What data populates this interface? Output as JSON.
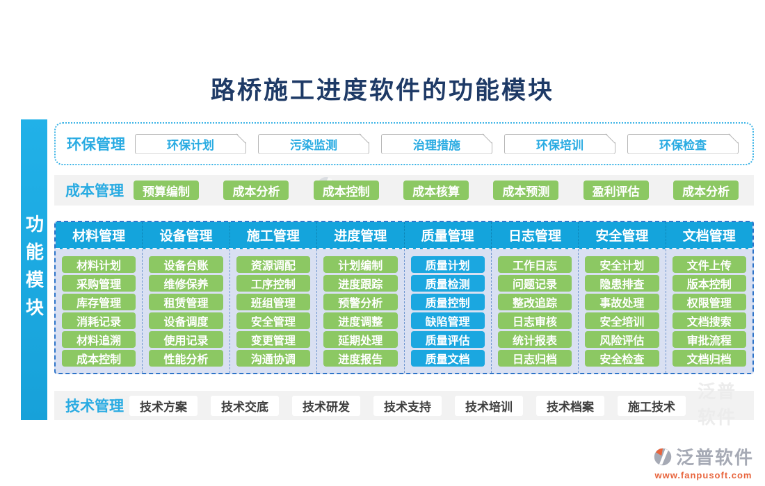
{
  "title": "路桥施工进度软件的功能模块",
  "sidebar_label": "功能模块",
  "sections": {
    "env": {
      "label": "环保管理",
      "buttons": [
        "环保计划",
        "污染监测",
        "治理措施",
        "环保培训",
        "环保检查"
      ]
    },
    "cost": {
      "label": "成本管理",
      "buttons": [
        "预算编制",
        "成本分析",
        "成本控制",
        "成本核算",
        "成本预测",
        "盈利评估",
        "成本分析"
      ]
    },
    "tech": {
      "label": "技术管理",
      "buttons": [
        "技术方案",
        "技术交底",
        "技术研发",
        "技术支持",
        "技术培训",
        "技术档案",
        "施工技术"
      ]
    }
  },
  "grid": {
    "columns": [
      {
        "header": "材料管理",
        "accent": "green",
        "items": [
          "材料计划",
          "采购管理",
          "库存管理",
          "消耗记录",
          "材料追溯",
          "成本控制"
        ]
      },
      {
        "header": "设备管理",
        "accent": "green",
        "items": [
          "设备台账",
          "维修保养",
          "租赁管理",
          "设备调度",
          "使用记录",
          "性能分析"
        ]
      },
      {
        "header": "施工管理",
        "accent": "green",
        "items": [
          "资源调配",
          "工序控制",
          "班组管理",
          "安全管理",
          "变更管理",
          "沟通协调"
        ]
      },
      {
        "header": "进度管理",
        "accent": "green",
        "items": [
          "计划编制",
          "进度跟踪",
          "预警分析",
          "进度调整",
          "延期处理",
          "进度报告"
        ]
      },
      {
        "header": "质量管理",
        "accent": "blue",
        "items": [
          "质量计划",
          "质量检测",
          "质量控制",
          "缺陷管理",
          "质量评估",
          "质量文档"
        ]
      },
      {
        "header": "日志管理",
        "accent": "green",
        "items": [
          "工作日志",
          "问题记录",
          "整改追踪",
          "日志审核",
          "统计报表",
          "日志归档"
        ]
      },
      {
        "header": "安全管理",
        "accent": "green",
        "items": [
          "安全计划",
          "隐患排查",
          "事故处理",
          "安全培训",
          "风险评估",
          "安全检查"
        ]
      },
      {
        "header": "文档管理",
        "accent": "green",
        "items": [
          "文件上传",
          "版本控制",
          "权限管理",
          "文档搜索",
          "审批流程",
          "文档归档"
        ]
      }
    ]
  },
  "watermark": {
    "text": "泛普软件"
  },
  "footer": {
    "brand": "泛普软件",
    "url": "www.fanpusoft.com"
  },
  "colors": {
    "accent_cyan": "#29ABE2",
    "header_blue": "#14A4DC",
    "green": "#8CC863",
    "quality_blue": "#1BA7E0",
    "panel_blue": "#D9E0F2",
    "bar_blue": "#1BAAE1",
    "title_navy": "#1E3A66",
    "strip_gray": "#F2F2F2",
    "dash_blue": "#2E74C9",
    "orange": "#E8643C"
  }
}
